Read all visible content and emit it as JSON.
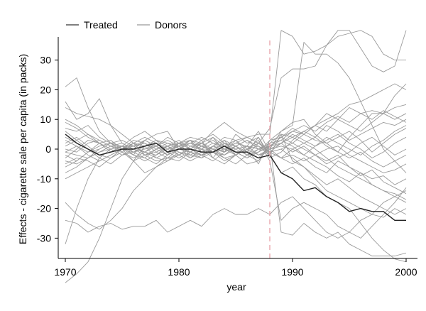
{
  "chart_data": {
    "type": "line",
    "title": "",
    "xlabel": "year",
    "ylabel": "Effects - cigarette sale per capita (in packs)",
    "xlim": [
      1970,
      2000
    ],
    "ylim": [
      -37,
      38
    ],
    "xticks": [
      1970,
      1980,
      1990,
      2000
    ],
    "yticks": [
      -30,
      -20,
      -10,
      0,
      10,
      20,
      30
    ],
    "grid": false,
    "legend_position": "top-left",
    "legend": [
      {
        "label": "Treated",
        "color": "#555555"
      },
      {
        "label": "Donors",
        "color": "#aaaaaa"
      }
    ],
    "intervention_year": 1988,
    "intervention_line_color": "#e8a0a8",
    "treated_color": "#222222",
    "donor_color": "#9a9a9a",
    "x": [
      1970,
      1971,
      1972,
      1973,
      1974,
      1975,
      1976,
      1977,
      1978,
      1979,
      1980,
      1981,
      1982,
      1983,
      1984,
      1985,
      1986,
      1987,
      1988,
      1989,
      1990,
      1991,
      1992,
      1993,
      1994,
      1995,
      1996,
      1997,
      1998,
      1999,
      2000
    ],
    "series": [
      {
        "role": "treated",
        "values": [
          5,
          2,
          0,
          -2,
          -1,
          0,
          0,
          1,
          2,
          -1,
          0,
          0,
          -1,
          -1,
          1,
          -1,
          -1,
          -3,
          -2,
          -8,
          -10,
          -14,
          -13,
          -16,
          -18,
          -21,
          -20,
          -21,
          -21,
          -24,
          -24
        ]
      },
      {
        "role": "donor",
        "values": [
          -1,
          -2,
          -3,
          -1,
          0,
          1,
          1,
          2,
          0,
          -2,
          0,
          3,
          -1,
          -1,
          -2,
          0,
          1,
          -2,
          0,
          6,
          8,
          36,
          32,
          32,
          29,
          24,
          16,
          8,
          0,
          -4,
          -8
        ]
      },
      {
        "role": "donor",
        "values": [
          -2,
          -4,
          -1,
          2,
          3,
          0,
          -4,
          1,
          3,
          -1,
          1,
          -3,
          0,
          4,
          -1,
          3,
          4,
          5,
          5,
          40,
          38,
          32,
          33,
          35,
          38,
          39,
          40,
          38,
          32,
          30,
          30
        ]
      },
      {
        "role": "donor",
        "values": [
          -4,
          -5,
          -3,
          0,
          2,
          1,
          -2,
          3,
          1,
          -2,
          2,
          3,
          2,
          6,
          9,
          6,
          4,
          2,
          7,
          24,
          27,
          27,
          28,
          35,
          40,
          40,
          34,
          28,
          26,
          28,
          40
        ]
      },
      {
        "role": "donor",
        "values": [
          -45,
          -42,
          -38,
          -30,
          -20,
          -10,
          -4,
          -2,
          0,
          1,
          3,
          0,
          -2,
          -1,
          3,
          -2,
          -5,
          -4,
          2,
          -28,
          -29,
          -25,
          -28,
          -30,
          -28,
          -32,
          -34,
          -36,
          -36,
          -36,
          -35
        ]
      },
      {
        "role": "donor",
        "values": [
          -18,
          -22,
          -25,
          -27,
          -24,
          -20,
          -14,
          -10,
          -6,
          -3,
          -2,
          1,
          2,
          -1,
          -4,
          -2,
          0,
          1,
          -2,
          -8,
          -6,
          -10,
          -12,
          -16,
          -18,
          -20,
          -25,
          -30,
          -34,
          -37,
          -38
        ]
      },
      {
        "role": "donor",
        "values": [
          -24,
          -25,
          -28,
          -26,
          -25,
          -27,
          -26,
          -26,
          -24,
          -28,
          -26,
          -24,
          -26,
          -22,
          -20,
          -22,
          -22,
          -20,
          -22,
          -18,
          -16,
          -20,
          -24,
          -28,
          -30,
          -28,
          -24,
          -22,
          -18,
          -16,
          -14
        ]
      },
      {
        "role": "donor",
        "values": [
          21,
          24,
          14,
          6,
          2,
          0,
          -2,
          -3,
          0,
          2,
          1,
          3,
          -1,
          1,
          -1,
          5,
          2,
          4,
          -2,
          5,
          -4,
          -6,
          -10,
          -14,
          -16,
          -18,
          -20,
          -22,
          -23,
          -20,
          -22
        ]
      },
      {
        "role": "donor",
        "values": [
          14,
          12,
          11,
          10,
          8,
          5,
          2,
          -2,
          -4,
          -3,
          0,
          2,
          1,
          0,
          2,
          1,
          -2,
          -1,
          3,
          6,
          9,
          10,
          5,
          2,
          -1,
          4,
          8,
          12,
          12,
          18,
          22
        ]
      },
      {
        "role": "donor",
        "values": [
          -32,
          -20,
          -10,
          -3,
          0,
          1,
          -2,
          -4,
          -2,
          1,
          2,
          4,
          3,
          -3,
          -5,
          -2,
          0,
          3,
          -4,
          -24,
          -20,
          -18,
          -20,
          -22,
          -26,
          -28,
          -30,
          -26,
          -22,
          -18,
          -13
        ]
      },
      {
        "role": "donor",
        "values": [
          10,
          8,
          5,
          3,
          1,
          0,
          2,
          1,
          -3,
          -4,
          -2,
          0,
          3,
          5,
          2,
          -1,
          -3,
          0,
          2,
          5,
          4,
          6,
          8,
          10,
          12,
          15,
          16,
          18,
          20,
          22,
          20
        ]
      },
      {
        "role": "donor",
        "values": [
          -10,
          -8,
          -6,
          -4,
          -2,
          0,
          1,
          3,
          1,
          -1,
          2,
          0,
          -2,
          -4,
          -1,
          1,
          3,
          0,
          -1,
          2,
          4,
          2,
          0,
          -3,
          -6,
          -8,
          -10,
          -12,
          -14,
          -15,
          -17
        ]
      },
      {
        "role": "donor",
        "values": [
          16,
          10,
          12,
          17,
          8,
          2,
          0,
          -1,
          2,
          0,
          1,
          2,
          0,
          -3,
          2,
          0,
          1,
          6,
          -1,
          0,
          2,
          5,
          8,
          12,
          10,
          14,
          12,
          13,
          12,
          14,
          15
        ]
      },
      {
        "role": "donor",
        "values": [
          7,
          6,
          8,
          4,
          2,
          -1,
          -4,
          -8,
          -6,
          -4,
          -1,
          -2,
          0,
          2,
          1,
          -2,
          0,
          -5,
          3,
          4,
          6,
          5,
          3,
          2,
          4,
          6,
          3,
          -1,
          2,
          5,
          7
        ]
      },
      {
        "role": "donor",
        "values": [
          -3,
          0,
          3,
          2,
          -1,
          1,
          0,
          3,
          5,
          6,
          0,
          -1,
          2,
          4,
          1,
          0,
          -2,
          2,
          0,
          -3,
          -2,
          -4,
          -2,
          0,
          1,
          -2,
          -4,
          -6,
          -8,
          -7,
          -5
        ]
      },
      {
        "role": "donor",
        "values": [
          2,
          4,
          1,
          -2,
          -3,
          0,
          3,
          2,
          -1,
          -3,
          -4,
          -1,
          -3,
          1,
          4,
          3,
          -1,
          -3,
          1,
          4,
          2,
          0,
          -2,
          -5,
          -3,
          -1,
          2,
          4,
          1,
          -2,
          0
        ]
      },
      {
        "role": "donor",
        "values": [
          -5,
          -3,
          -4,
          -6,
          -3,
          -1,
          2,
          0,
          1,
          3,
          1,
          -1,
          1,
          0,
          -2,
          1,
          -1,
          4,
          -3,
          -1,
          3,
          6,
          4,
          8,
          6,
          3,
          5,
          7,
          9,
          8,
          10
        ]
      },
      {
        "role": "donor",
        "values": [
          3,
          1,
          -1,
          0,
          2,
          3,
          1,
          -1,
          -2,
          0,
          2,
          1,
          0,
          -1,
          -3,
          -2,
          1,
          0,
          2,
          3,
          1,
          -2,
          -4,
          -6,
          -9,
          -11,
          -8,
          -12,
          -14,
          -16,
          -18
        ]
      },
      {
        "role": "donor",
        "values": [
          0,
          -1,
          2,
          3,
          1,
          -1,
          -3,
          -1,
          1,
          4,
          2,
          -2,
          -3,
          -1,
          0,
          2,
          1,
          -2,
          -1,
          0,
          -3,
          -6,
          -9,
          -12,
          -10,
          -13,
          -16,
          -18,
          -20,
          -22,
          -20
        ]
      },
      {
        "role": "donor",
        "values": [
          6,
          3,
          0,
          -2,
          -1,
          1,
          4,
          6,
          3,
          1,
          -1,
          -3,
          -1,
          1,
          0,
          -1,
          -3,
          -1,
          1,
          3,
          6,
          8,
          6,
          9,
          11,
          9,
          12,
          10,
          13,
          11,
          9
        ]
      },
      {
        "role": "donor",
        "values": [
          -6,
          -4,
          -1,
          1,
          2,
          0,
          -1,
          -3,
          -5,
          -2,
          0,
          2,
          4,
          2,
          0,
          -2,
          0,
          2,
          -1,
          -3,
          -5,
          -3,
          -6,
          -8,
          -4,
          -6,
          -9,
          -7,
          -11,
          -13,
          -15
        ]
      },
      {
        "role": "donor",
        "values": [
          1,
          3,
          5,
          2,
          0,
          -2,
          -1,
          1,
          3,
          2,
          0,
          -1,
          -2,
          1,
          3,
          1,
          -2,
          -4,
          1,
          2,
          5,
          3,
          1,
          4,
          2,
          0,
          -2,
          1,
          3,
          6,
          8
        ]
      },
      {
        "role": "donor",
        "values": [
          -8,
          -6,
          -3,
          -1,
          1,
          2,
          0,
          -2,
          -1,
          1,
          -2,
          -4,
          -2,
          0,
          -1,
          1,
          3,
          1,
          -1,
          -3,
          0,
          2,
          4,
          1,
          -1,
          -3,
          -1,
          -4,
          -6,
          -4,
          -2
        ]
      },
      {
        "role": "donor",
        "values": [
          9,
          7,
          4,
          2,
          0,
          1,
          -1,
          0,
          2,
          -1,
          -3,
          -1,
          1,
          3,
          0,
          2,
          4,
          2,
          0,
          2,
          -1,
          1,
          -2,
          -4,
          -2,
          -6,
          -8,
          -10,
          -9,
          -12,
          -10
        ]
      },
      {
        "role": "donor",
        "values": [
          -1,
          1,
          -2,
          -4,
          -2,
          0,
          2,
          4,
          2,
          0,
          -2,
          0,
          2,
          0,
          -3,
          -5,
          -2,
          0,
          1,
          4,
          7,
          5,
          8,
          6,
          10,
          8,
          6,
          9,
          12,
          10,
          12
        ]
      },
      {
        "role": "donor",
        "values": [
          4,
          2,
          0,
          -3,
          -5,
          -2,
          0,
          -1,
          -3,
          -1,
          1,
          3,
          1,
          -1,
          1,
          3,
          0,
          -2,
          0,
          1,
          0,
          -2,
          1,
          3,
          5,
          2,
          0,
          -3,
          -1,
          2,
          4
        ]
      }
    ]
  },
  "legend": {
    "treated_label": "Treated",
    "donors_label": "Donors"
  }
}
